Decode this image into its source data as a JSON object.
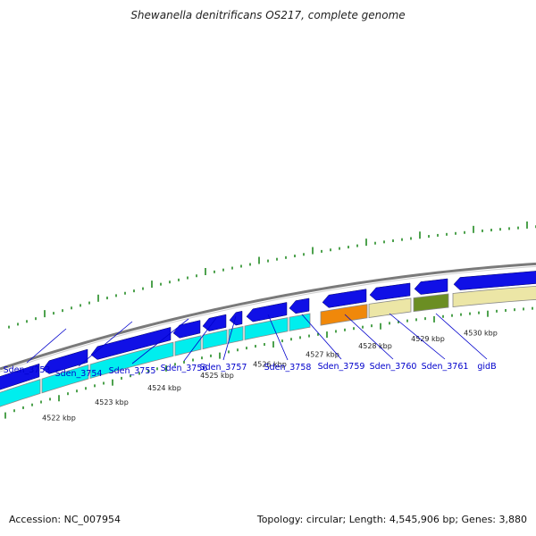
{
  "title": "Shewanella denitrificans OS217, complete genome",
  "footer": {
    "accession": "Accession: NC_007954",
    "stats": "Topology: circular; Length: 4,545,906 bp; Genes: 3,880"
  },
  "colors": {
    "backbone": "#7a7a7a",
    "forward_gene": "#1010e6",
    "reverse_cds": "#00eeee",
    "highlight_orange": "#f0880a",
    "khaki": "#ece6a6",
    "olive": "#6b8e23",
    "tick_green": "#228b22",
    "label_blue": "#0000cc"
  },
  "kbp_labels": [
    "4522 kbp",
    "4523 kbp",
    "4524 kbp",
    "4525 kbp",
    "4526 kbp",
    "4527 kbp",
    "4528 kbp",
    "4529 kbp",
    "4530 kbp"
  ],
  "gene_labels": [
    "Sden_3753",
    "Sden_3754",
    "Sden_3755",
    "Sden_3756",
    "Sden_3757",
    "Sden_3758",
    "Sden_3759",
    "Sden_3760",
    "Sden_3761",
    "gidB"
  ]
}
